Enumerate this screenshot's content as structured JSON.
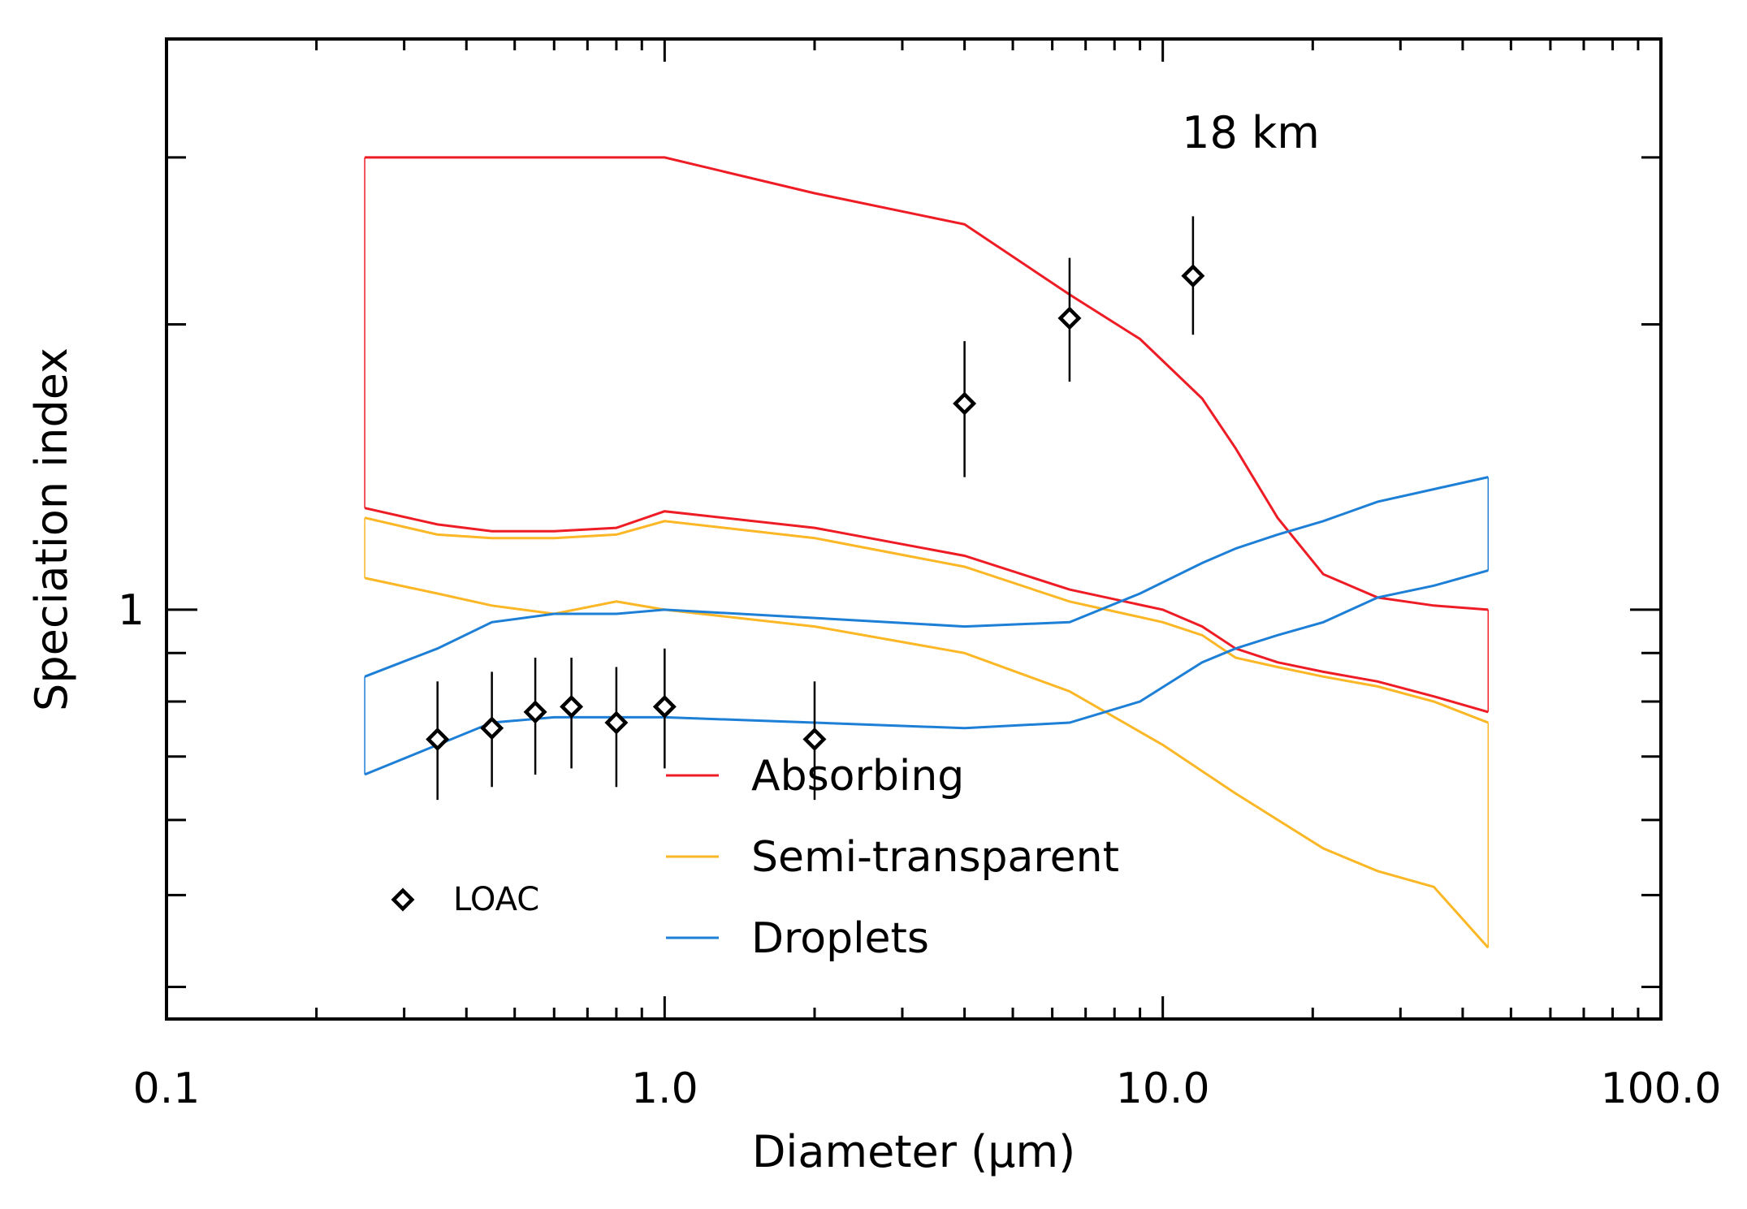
{
  "chart_data": {
    "type": "line",
    "xlabel": "Diameter (μm)",
    "ylabel": "Speciation index",
    "annotation": "18 km",
    "x_scale": "log",
    "y_scale": "log",
    "xlim": [
      0.1,
      100
    ],
    "ylim": [
      0.37,
      4.0
    ],
    "x_ticks": [
      {
        "value": 0.1,
        "label": "0.1"
      },
      {
        "value": 1,
        "label": "1.0"
      },
      {
        "value": 10,
        "label": "10.0"
      },
      {
        "value": 100,
        "label": "100.0"
      }
    ],
    "y_ticks": [
      {
        "value": 1,
        "label": "1"
      }
    ],
    "y_minor_ticks": [
      0.4,
      0.5,
      0.6,
      0.7,
      0.8,
      0.9,
      2,
      3
    ],
    "grid": false,
    "legend_position": "bottom-center",
    "colors": {
      "absorbing": "#ee1c25",
      "semi_transparent": "#fbb725",
      "droplets": "#1d7fd6",
      "loac": "#000000",
      "axes": "#000000"
    },
    "series": [
      {
        "name": "Absorbing",
        "color": "#ee1c25",
        "upper": {
          "x": [
            0.25,
            1.0,
            2.0,
            4.0,
            6.5,
            9.0,
            12.0,
            14.0,
            17.0,
            21.0,
            27.0,
            35.0,
            45.0
          ],
          "y": [
            3.0,
            3.0,
            2.75,
            2.55,
            2.15,
            1.93,
            1.67,
            1.48,
            1.25,
            1.09,
            1.03,
            1.01,
            1.0
          ]
        },
        "lower": {
          "x": [
            0.25,
            0.35,
            0.45,
            0.6,
            0.8,
            1.0,
            2.0,
            4.0,
            6.5,
            10.0,
            12.0,
            14.0,
            17.0,
            21.0,
            27.0,
            35.0,
            45.0
          ],
          "y": [
            1.28,
            1.23,
            1.21,
            1.21,
            1.22,
            1.27,
            1.22,
            1.14,
            1.05,
            1.0,
            0.96,
            0.91,
            0.88,
            0.86,
            0.84,
            0.81,
            0.78
          ]
        }
      },
      {
        "name": "Semi-transparent",
        "color": "#fbb725",
        "upper": {
          "x": [
            0.25,
            0.35,
            0.45,
            0.6,
            0.8,
            1.0,
            2.0,
            4.0,
            6.5,
            10.0,
            12.0,
            14.0,
            17.0,
            21.0,
            27.0,
            35.0,
            45.0
          ],
          "y": [
            1.25,
            1.2,
            1.19,
            1.19,
            1.2,
            1.24,
            1.19,
            1.11,
            1.02,
            0.97,
            0.94,
            0.89,
            0.87,
            0.85,
            0.83,
            0.8,
            0.76
          ]
        },
        "lower": {
          "x": [
            0.25,
            0.35,
            0.45,
            0.6,
            0.8,
            1.0,
            2.0,
            4.0,
            6.5,
            10.0,
            14.0,
            21.0,
            27.0,
            35.0,
            45.0
          ],
          "y": [
            1.08,
            1.04,
            1.01,
            0.99,
            1.02,
            1.0,
            0.96,
            0.9,
            0.82,
            0.72,
            0.64,
            0.56,
            0.53,
            0.51,
            0.44
          ]
        }
      },
      {
        "name": "Droplets",
        "color": "#1d7fd6",
        "upper": {
          "x": [
            0.25,
            0.35,
            0.45,
            0.6,
            0.8,
            1.0,
            2.0,
            4.0,
            6.5,
            9.0,
            12.0,
            14.0,
            17.0,
            21.0,
            27.0,
            35.0,
            45.0
          ],
          "y": [
            0.85,
            0.91,
            0.97,
            0.99,
            0.99,
            1.0,
            0.98,
            0.96,
            0.97,
            1.04,
            1.12,
            1.16,
            1.2,
            1.24,
            1.3,
            1.34,
            1.38
          ]
        },
        "lower": {
          "x": [
            0.25,
            0.35,
            0.45,
            0.6,
            0.8,
            1.0,
            2.0,
            4.0,
            6.5,
            9.0,
            12.0,
            14.0,
            17.0,
            21.0,
            27.0,
            35.0,
            45.0
          ],
          "y": [
            0.67,
            0.72,
            0.76,
            0.77,
            0.77,
            0.77,
            0.76,
            0.75,
            0.76,
            0.8,
            0.88,
            0.91,
            0.94,
            0.97,
            1.03,
            1.06,
            1.1
          ]
        }
      }
    ],
    "loac": {
      "name": "LOAC",
      "x": [
        0.35,
        0.45,
        0.55,
        0.65,
        0.8,
        1.0,
        2.0,
        4.0,
        6.5,
        11.5
      ],
      "y": [
        0.73,
        0.75,
        0.78,
        0.79,
        0.76,
        0.79,
        0.73,
        1.65,
        2.03,
        2.25
      ],
      "err_low": [
        0.63,
        0.65,
        0.67,
        0.68,
        0.65,
        0.68,
        0.63,
        1.38,
        1.74,
        1.95
      ],
      "err_high": [
        0.84,
        0.86,
        0.89,
        0.89,
        0.87,
        0.91,
        0.84,
        1.92,
        2.35,
        2.6
      ]
    }
  }
}
